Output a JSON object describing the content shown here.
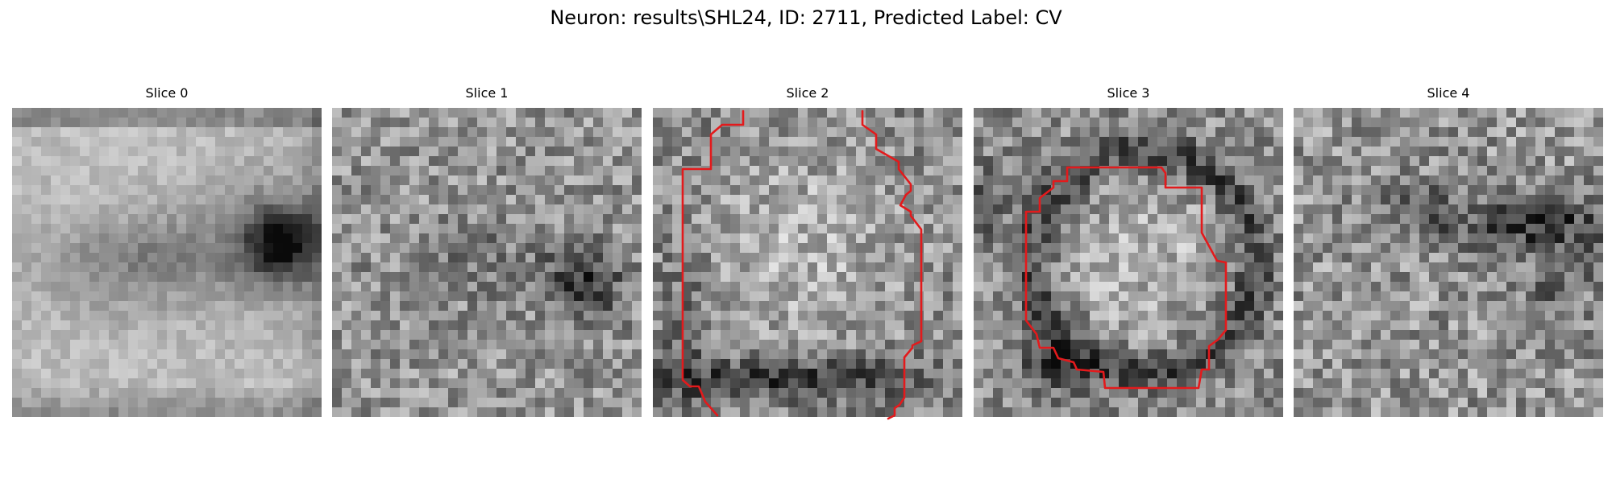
{
  "figure": {
    "suptitle": "Neuron: results\\SHL24, ID: 2711, Predicted Label: CV",
    "colormap": "gray",
    "contour_color": "#e31a1c"
  },
  "slices": [
    {
      "title": "Slice 0",
      "has_contour": false
    },
    {
      "title": "Slice 1",
      "has_contour": false
    },
    {
      "title": "Slice 2",
      "has_contour": true
    },
    {
      "title": "Slice 3",
      "has_contour": true
    },
    {
      "title": "Slice 4",
      "has_contour": false
    }
  ]
}
